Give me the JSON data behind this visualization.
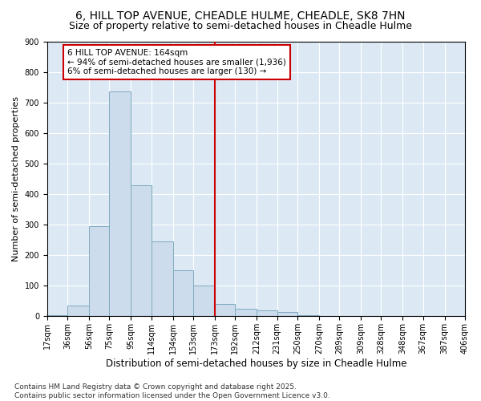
{
  "title": "6, HILL TOP AVENUE, CHEADLE HULME, CHEADLE, SK8 7HN",
  "subtitle": "Size of property relative to semi-detached houses in Cheadle Hulme",
  "xlabel": "Distribution of semi-detached houses by size in Cheadle Hulme",
  "ylabel": "Number of semi-detached properties",
  "bins": [
    17,
    36,
    56,
    75,
    95,
    114,
    134,
    153,
    173,
    192,
    212,
    231,
    250,
    270,
    289,
    309,
    328,
    348,
    367,
    387,
    406
  ],
  "bin_labels": [
    "17sqm",
    "36sqm",
    "56sqm",
    "75sqm",
    "95sqm",
    "114sqm",
    "134sqm",
    "153sqm",
    "173sqm",
    "192sqm",
    "212sqm",
    "231sqm",
    "250sqm",
    "270sqm",
    "289sqm",
    "309sqm",
    "328sqm",
    "348sqm",
    "367sqm",
    "387sqm",
    "406sqm"
  ],
  "bar_heights": [
    5,
    35,
    295,
    735,
    430,
    245,
    150,
    100,
    40,
    25,
    20,
    15,
    5,
    0,
    0,
    0,
    0,
    0,
    0,
    0
  ],
  "bar_color": "#ccdcec",
  "bar_edge_color": "#7faabf",
  "property_size": 164,
  "vline_x": 173,
  "vline_color": "#cc0000",
  "annotation_text": "6 HILL TOP AVENUE: 164sqm\n← 94% of semi-detached houses are smaller (1,936)\n6% of semi-detached houses are larger (130) →",
  "annotation_box_color": "#ffffff",
  "annotation_box_edge": "#cc0000",
  "ylim": [
    0,
    900
  ],
  "yticks": [
    0,
    100,
    200,
    300,
    400,
    500,
    600,
    700,
    800,
    900
  ],
  "background_color": "#dce9f5",
  "footer_text": "Contains HM Land Registry data © Crown copyright and database right 2025.\nContains public sector information licensed under the Open Government Licence v3.0.",
  "title_fontsize": 10,
  "subtitle_fontsize": 9,
  "xlabel_fontsize": 8.5,
  "ylabel_fontsize": 8,
  "tick_fontsize": 7,
  "annotation_fontsize": 7.5,
  "footer_fontsize": 6.5
}
